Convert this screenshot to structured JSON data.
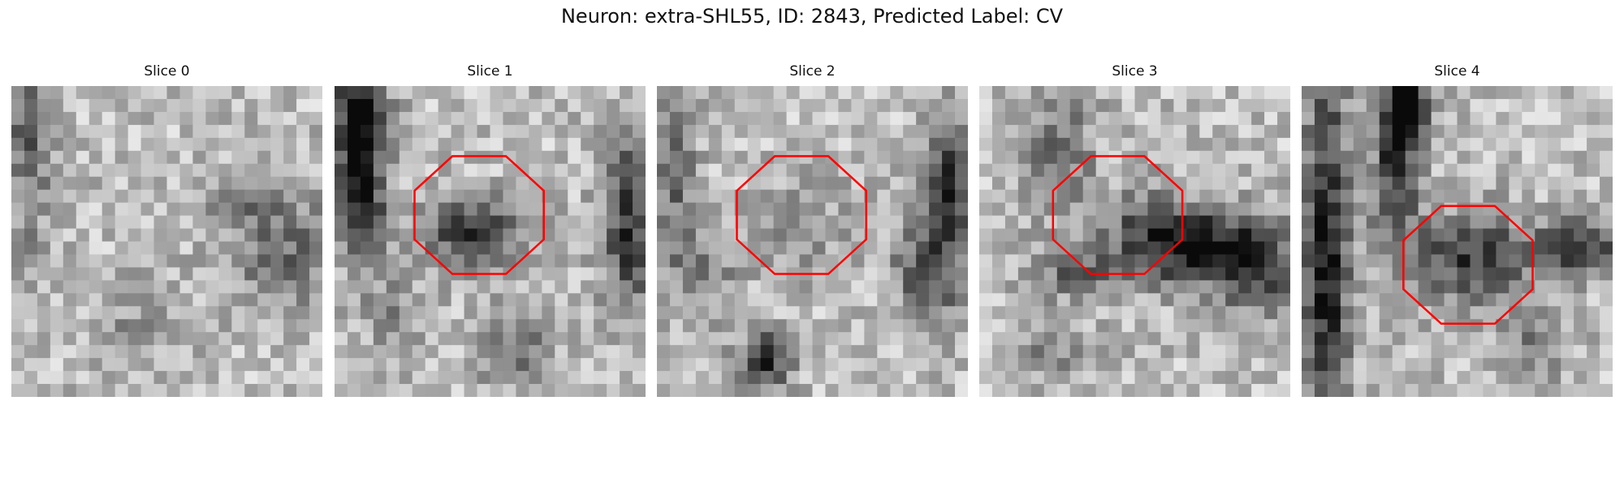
{
  "figure": {
    "suptitle": "Neuron: extra-SHL55, ID: 2843, Predicted Label: CV",
    "outline_color": "#ff0000",
    "colormap": "gray",
    "panels": [
      {
        "title": "Slice 0",
        "roi": false
      },
      {
        "title": "Slice 1",
        "roi": true
      },
      {
        "title": "Slice 2",
        "roi": true
      },
      {
        "title": "Slice 3",
        "roi": true
      },
      {
        "title": "Slice 4",
        "roi": true
      }
    ]
  }
}
